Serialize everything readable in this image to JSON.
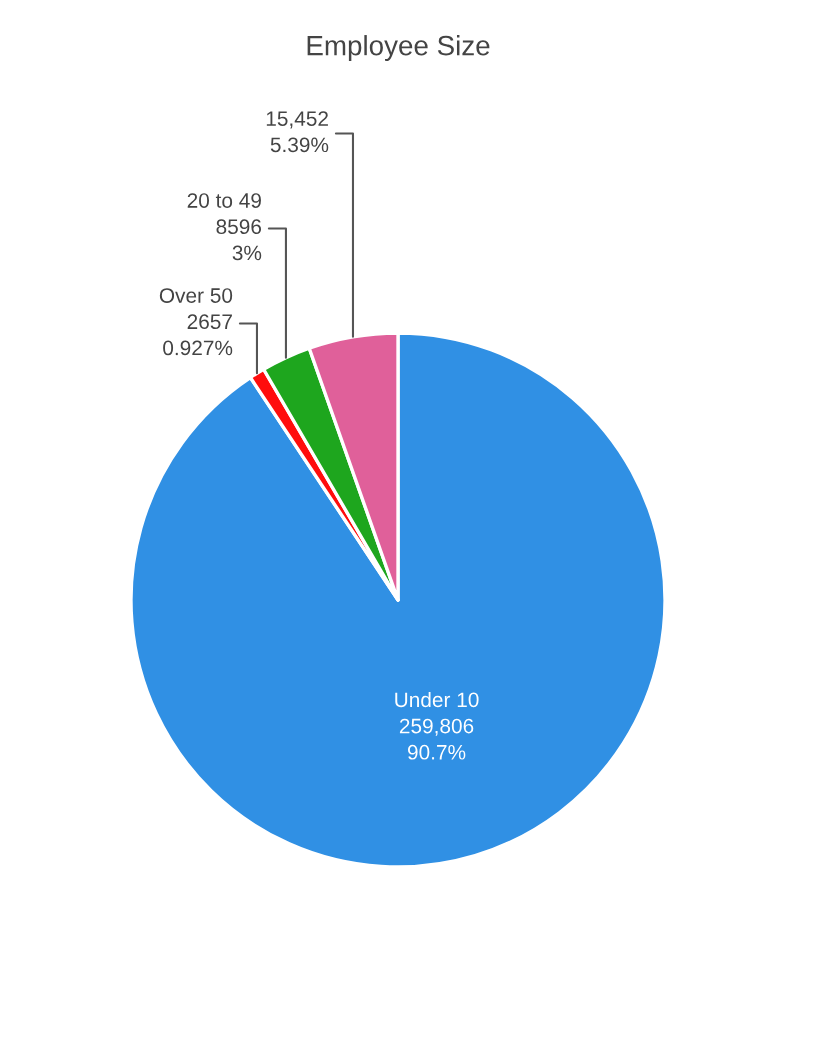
{
  "chart_data": {
    "type": "pie",
    "title": "Employee Size",
    "categories": [
      "Under 10",
      "Over 50",
      "20 to 49",
      null
    ],
    "values": [
      259806,
      2657,
      8596,
      15452
    ],
    "value_labels": [
      "259,806\n90.7%",
      "2657\n0.927%",
      "8596\n3%",
      "15,452\n5.39%"
    ],
    "colors": [
      "#3090e4",
      "#ff0d0d",
      "#1ea61e",
      "#e0609a"
    ]
  }
}
